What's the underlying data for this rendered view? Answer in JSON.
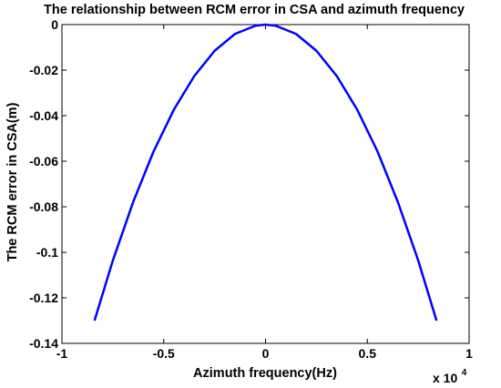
{
  "chart_data": {
    "type": "line",
    "title": "The relationship between RCM error in CSA and azimuth frequency",
    "xlabel": "Azimuth frequency(Hz)",
    "ylabel": "The RCM error in CSA(m)",
    "x_multiplier_label": "x 10",
    "x_multiplier_exponent": "4",
    "xlim": [
      -10000,
      10000
    ],
    "ylim": [
      -0.14,
      0
    ],
    "x_ticks": [
      -10000,
      -5000,
      0,
      5000,
      10000
    ],
    "x_tick_labels": [
      "-1",
      "-0.5",
      "0",
      "0.5",
      "1"
    ],
    "y_ticks": [
      0,
      -0.02,
      -0.04,
      -0.06,
      -0.08,
      -0.1,
      -0.12,
      -0.14
    ],
    "y_tick_labels": [
      "0",
      "-0.02",
      "-0.04",
      "-0.06",
      "-0.08",
      "-0.1",
      "-0.12",
      "-0.14"
    ],
    "grid": false,
    "line_color": "#0000ff",
    "series": [
      {
        "x": [
          -8400,
          -7500,
          -6500,
          -5500,
          -4500,
          -3500,
          -2500,
          -1500,
          -500,
          0,
          500,
          1500,
          2500,
          3500,
          4500,
          5500,
          6500,
          7500,
          8400
        ],
        "values": [
          -0.13,
          -0.1036,
          -0.0779,
          -0.0557,
          -0.0373,
          -0.0226,
          -0.0115,
          -0.0041,
          -0.0005,
          0.0,
          -0.0005,
          -0.0041,
          -0.0115,
          -0.0226,
          -0.0373,
          -0.0557,
          -0.0779,
          -0.1036,
          -0.13
        ]
      }
    ]
  }
}
